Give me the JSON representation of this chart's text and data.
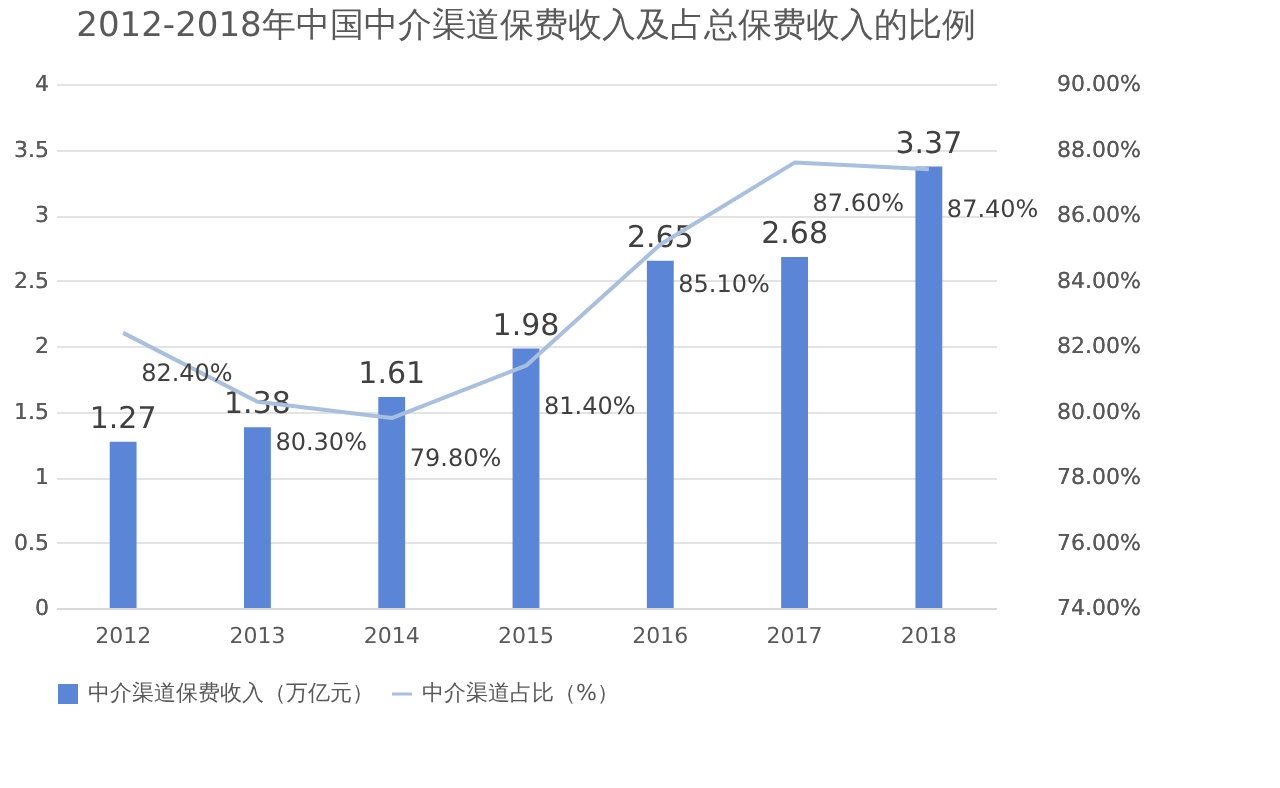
{
  "chart_data": {
    "type": "bar",
    "title": "2012-2018年中国中介渠道保费收入及占总保费收入的比例",
    "categories": [
      "2012",
      "2013",
      "2014",
      "2015",
      "2016",
      "2017",
      "2018"
    ],
    "series": [
      {
        "name": "中介渠道保费收入（万亿元）",
        "color": "#5b86d8",
        "values": [
          1.27,
          1.38,
          1.61,
          1.98,
          2.65,
          2.68,
          3.37
        ],
        "value_labels": [
          "1.27",
          "1.38",
          "1.61",
          "1.98",
          "2.65",
          "2.68",
          "3.37"
        ]
      },
      {
        "name": "中介渠道占比（%）",
        "type": "line",
        "axis": "y2",
        "color": "#a9bfdf",
        "values": [
          82.4,
          80.3,
          79.8,
          81.4,
          85.1,
          87.6,
          87.4
        ],
        "value_labels": [
          "82.40%",
          "80.30%",
          "79.80%",
          "81.40%",
          "85.10%",
          "87.60%",
          "87.40%"
        ]
      }
    ],
    "ylim": [
      0,
      4
    ],
    "yticks": [
      0,
      0.5,
      1,
      1.5,
      2,
      2.5,
      3,
      3.5,
      4
    ],
    "y2lim": [
      74,
      90
    ],
    "y2ticks": [
      {
        "value": 74,
        "label": "74.00%"
      },
      {
        "value": 76,
        "label": "76.00%"
      },
      {
        "value": 78,
        "label": "78.00%"
      },
      {
        "value": 80,
        "label": "80.00%"
      },
      {
        "value": 82,
        "label": "82.00%"
      },
      {
        "value": 84,
        "label": "84.00%"
      },
      {
        "value": 86,
        "label": "86.00%"
      },
      {
        "value": 88,
        "label": "88.00%"
      },
      {
        "value": 90,
        "label": "90.00%"
      }
    ],
    "grid": "y",
    "legend": "bottom"
  }
}
